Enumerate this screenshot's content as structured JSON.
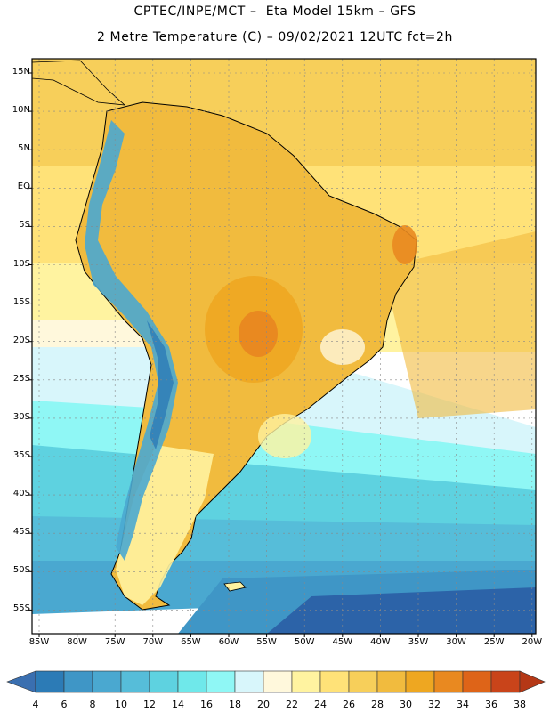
{
  "title": {
    "line1": "CPTEC/INPE/MCT –  Eta Model 15km – GFS",
    "line2": "2 Metre Temperature (C) – 09/02/2021 12UTC fct=2h"
  },
  "latitude_labels": [
    "15N",
    "10N",
    "5N",
    "EQ",
    "5S",
    "10S",
    "15S",
    "20S",
    "25S",
    "30S",
    "35S",
    "40S",
    "45S",
    "50S",
    "55S"
  ],
  "longitude_labels": [
    "85W",
    "80W",
    "75W",
    "70W",
    "65W",
    "60W",
    "55W",
    "50W",
    "45W",
    "40W",
    "35W",
    "30W",
    "25W",
    "20W"
  ],
  "colorbar": {
    "labels": [
      "4",
      "6",
      "8",
      "10",
      "12",
      "14",
      "16",
      "18",
      "20",
      "22",
      "24",
      "26",
      "28",
      "30",
      "32",
      "34",
      "36",
      "38"
    ],
    "colors": [
      "#3a6fb0",
      "#2c7bb6",
      "#3f96c6",
      "#4aa8d0",
      "#56bdd9",
      "#5ed2e0",
      "#6fe8ea",
      "#8ff7f5",
      "#d8f6fb",
      "#fff8dc",
      "#fff3a0",
      "#ffe278",
      "#f7cf5a",
      "#f1bb3e",
      "#eea721",
      "#e98920",
      "#de6418",
      "#c9441a",
      "#b53816"
    ]
  },
  "colors": {
    "ocean_south": "#2c63a8",
    "ocean_mid": "#56bdd9",
    "ocean_north": "#ffe278",
    "land_warm": "#f1bb3e",
    "land_hot": "#e98920",
    "andes_cold": "#4aa8d0"
  }
}
